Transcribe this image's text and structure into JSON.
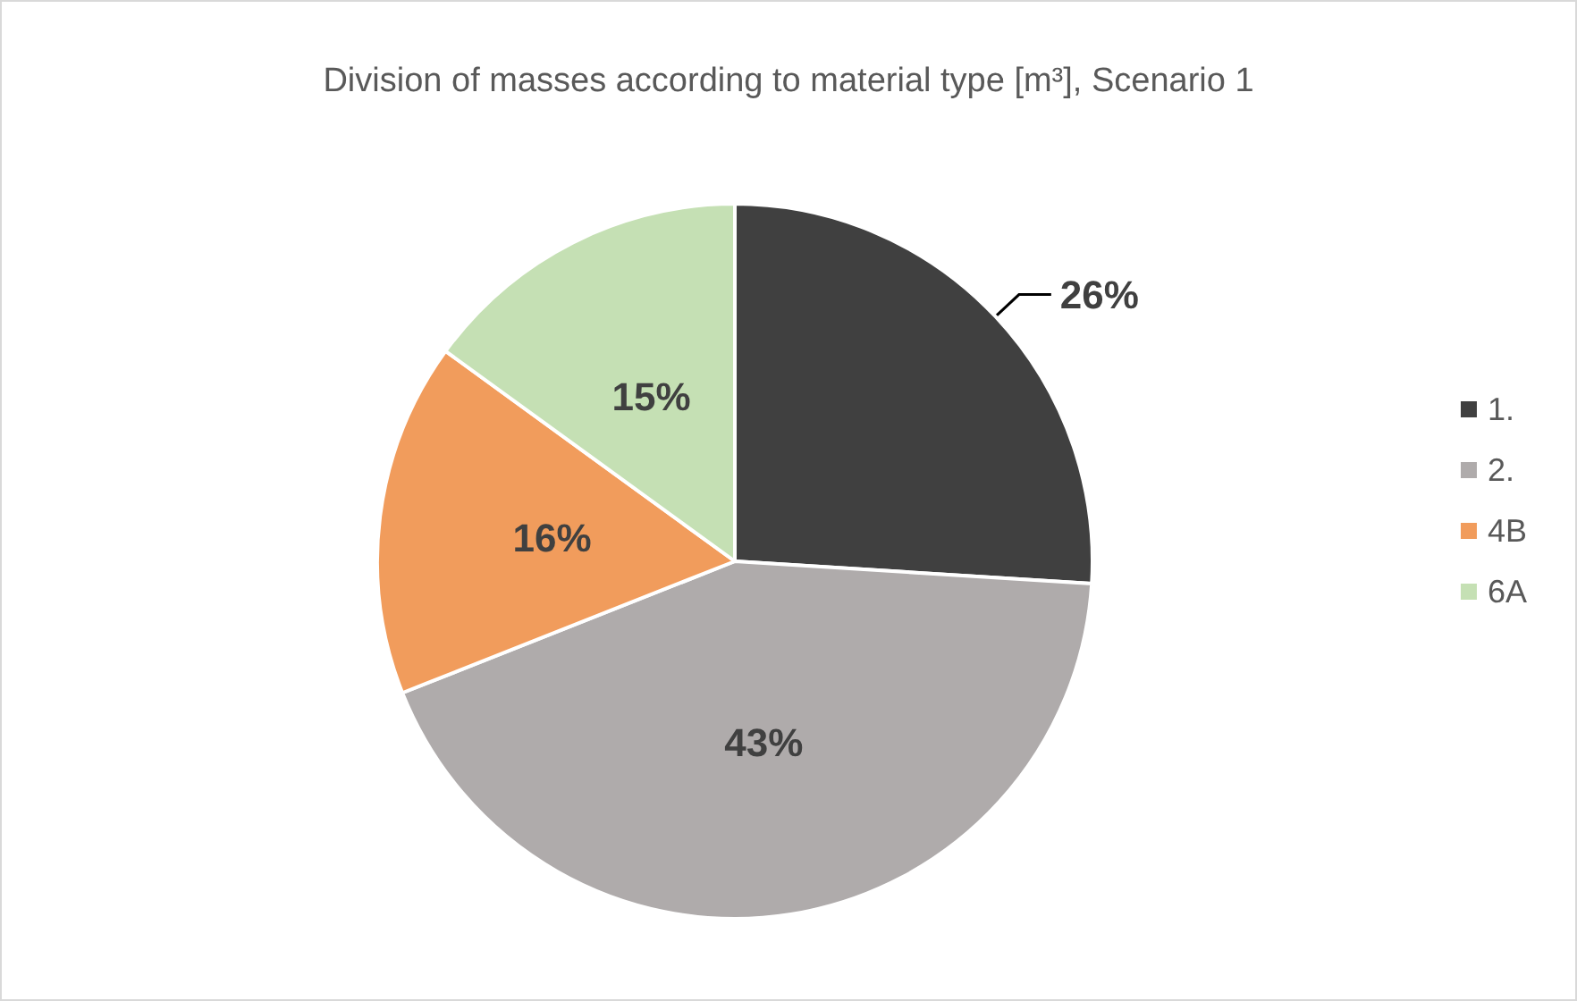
{
  "chart_data": {
    "type": "pie",
    "title": "Division of masses according to material type [m³], Scenario 1",
    "categories": [
      "1.",
      "2.",
      "4B",
      "6A"
    ],
    "values": [
      26,
      43,
      16,
      15
    ],
    "colors": [
      "#404040",
      "#afabab",
      "#f19c5c",
      "#c5e0b4"
    ],
    "value_labels": [
      "26%",
      "43%",
      "16%",
      "15%"
    ],
    "legend": "right"
  }
}
